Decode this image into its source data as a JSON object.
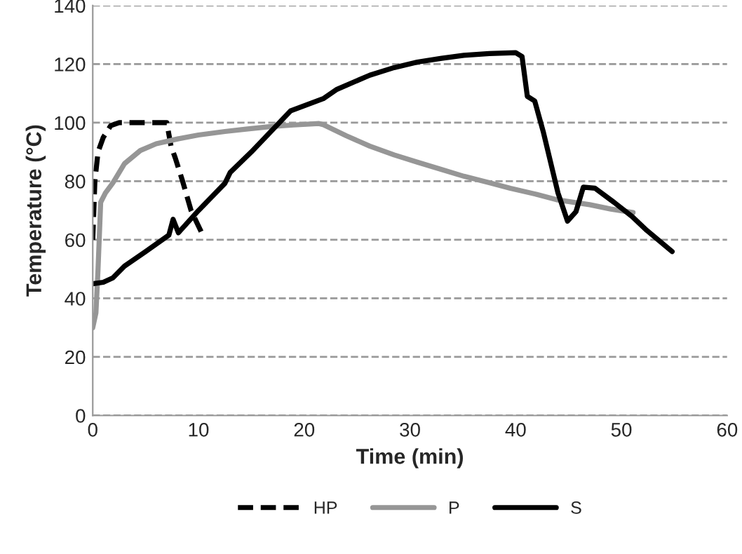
{
  "chart_data": {
    "type": "line",
    "xlabel": "Time (min)",
    "ylabel": "Temperature (°C)",
    "xlim": [
      0,
      60
    ],
    "xticks": [
      0,
      10,
      20,
      30,
      40,
      50,
      60
    ],
    "ylim": [
      0,
      140
    ],
    "yticks": [
      0,
      20,
      40,
      60,
      80,
      100,
      120,
      140
    ],
    "grid": "y",
    "legend": "bottom",
    "marker": "none",
    "series": [
      {
        "name": "HP",
        "color": "#000000",
        "line_style": "dashed",
        "x": [
          0,
          0.2,
          0.5,
          1.0,
          1.7,
          2.5,
          4,
          6,
          7.0,
          7.4,
          7.8,
          8.5,
          9.3,
          10.3
        ],
        "values": [
          60,
          80,
          90,
          95,
          99,
          100,
          100,
          100,
          100,
          92,
          88,
          80,
          70,
          62.4
        ]
      },
      {
        "name": "P",
        "color": "#969696",
        "line_style": "solid",
        "x": [
          0,
          0.3,
          0.5,
          0.75,
          1.2,
          1.9,
          3,
          4.5,
          6,
          8.1,
          10,
          12.5,
          14.5,
          16.9,
          19,
          21.4,
          21.8,
          24,
          26.2,
          28.5,
          30.7,
          33,
          35.1,
          37.5,
          39.5,
          42,
          44,
          47,
          49,
          51.1
        ],
        "values": [
          30,
          35,
          50,
          72.8,
          76,
          79.4,
          86,
          90.5,
          92.8,
          94.5,
          95.8,
          97,
          97.8,
          98.7,
          99.2,
          99.7,
          99.3,
          95.5,
          92,
          89,
          86.5,
          84,
          81.7,
          79.5,
          77.6,
          75.5,
          73.6,
          72,
          70.5,
          69.3
        ]
      },
      {
        "name": "S",
        "color": "#000000",
        "line_style": "solid",
        "x": [
          0,
          1,
          1.9,
          3,
          5,
          7.2,
          7.6,
          8.1,
          10,
          12.5,
          13.0,
          15,
          18.7,
          21.8,
          23.1,
          26.2,
          28.5,
          30.7,
          33,
          35.1,
          37.5,
          40,
          40.6,
          41.1,
          41.8,
          42.6,
          44,
          44.9,
          45.7,
          46.4,
          47.5,
          49.3,
          51,
          52.4,
          54.8
        ],
        "values": [
          45,
          45.5,
          47,
          51,
          56,
          61.6,
          67,
          62.4,
          70,
          79.3,
          83,
          90,
          104,
          108.2,
          111.4,
          116.2,
          118.8,
          120.7,
          122,
          123,
          123.6,
          123.9,
          122.6,
          109,
          107.4,
          97,
          76,
          66.4,
          69.6,
          78,
          77.6,
          72.8,
          68,
          63.2,
          56
        ]
      }
    ]
  }
}
